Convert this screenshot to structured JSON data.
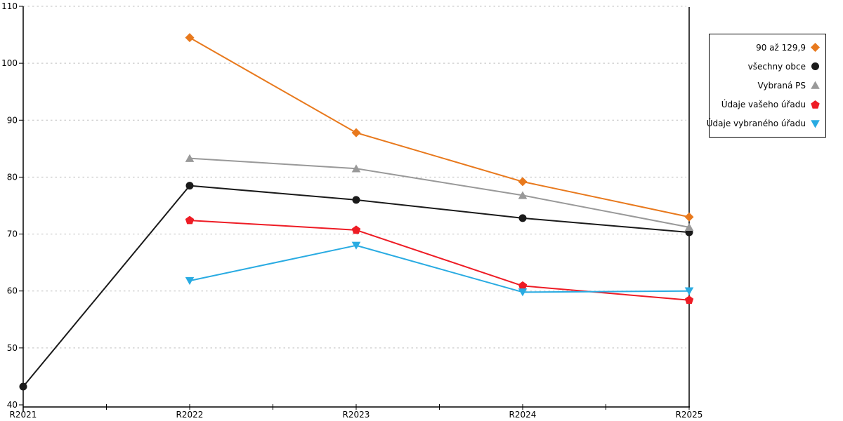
{
  "chart_data": {
    "type": "line",
    "title": "",
    "xlabel": "",
    "ylabel": "",
    "categories": [
      "R2021",
      "R2022",
      "R2023",
      "R2024",
      "R2025"
    ],
    "y_ticks": [
      40,
      50,
      60,
      70,
      80,
      90,
      100,
      110
    ],
    "ylim": [
      40,
      110
    ],
    "grid": "horizontal-dashed",
    "legend_position": "right",
    "series": [
      {
        "name": "90 až 129,9",
        "marker": "diamond",
        "color": "#E8791D",
        "values": [
          null,
          104.5,
          87.8,
          79.2,
          73.0
        ]
      },
      {
        "name": "všechny obce",
        "marker": "circle",
        "color": "#1A1A1A",
        "values": [
          43.2,
          78.5,
          76.0,
          72.8,
          70.3
        ]
      },
      {
        "name": "Vybraná PS",
        "marker": "triangle-up",
        "color": "#999999",
        "values": [
          null,
          83.3,
          81.5,
          76.8,
          71.2
        ]
      },
      {
        "name": "Údaje vašeho úřadu",
        "marker": "pentagon",
        "color": "#EE1C25",
        "values": [
          null,
          72.4,
          70.7,
          60.9,
          58.4
        ]
      },
      {
        "name": "Údaje vybraného úřadu",
        "marker": "triangle-down",
        "color": "#29ABE2",
        "values": [
          null,
          61.8,
          68.0,
          59.8,
          60.0
        ]
      }
    ]
  },
  "colors": {
    "background": "#FFFFFF",
    "axis": "#000000",
    "grid": "#BFBFBF",
    "text": "#000000"
  }
}
